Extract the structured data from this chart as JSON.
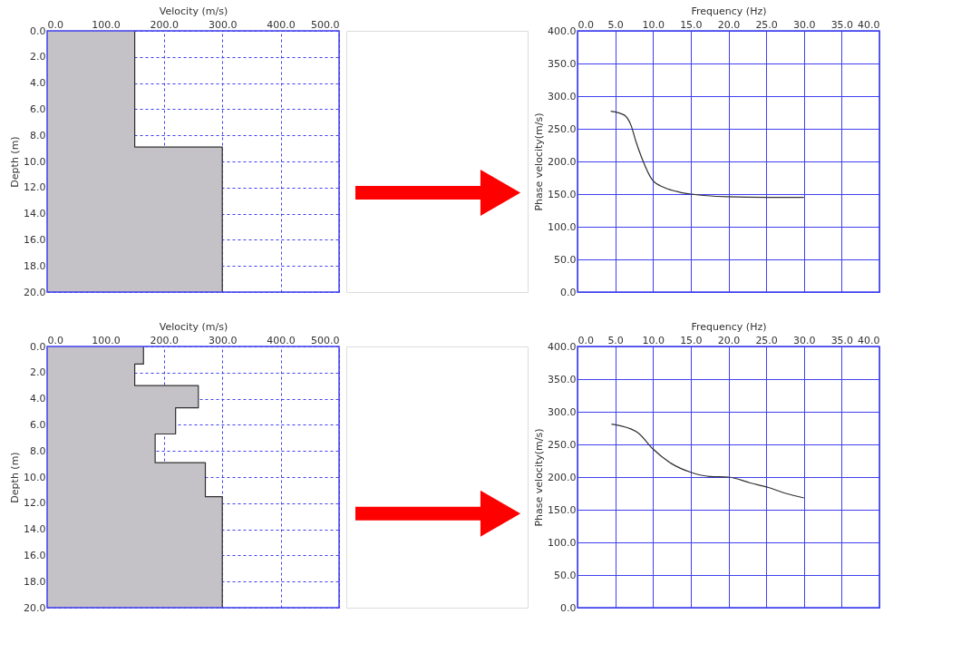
{
  "chart_data": [
    {
      "type": "area",
      "orientation": "horizontal",
      "xlabel": "Velocity (m/s)",
      "ylabel": "Depth (m)",
      "x": [
        0,
        8.9,
        8.9,
        20
      ],
      "series": [
        {
          "color": "#c4c2c6",
          "values": [
            150,
            150,
            300,
            300
          ]
        }
      ],
      "xlim": [
        0,
        500
      ],
      "xticks": [
        {
          "value": 0,
          "label": "0.0"
        },
        {
          "value": 100,
          "label": "100.0"
        },
        {
          "value": 200,
          "label": "200.0"
        },
        {
          "value": 300,
          "label": "300.0"
        },
        {
          "value": 400,
          "label": "400.0"
        },
        {
          "value": 500,
          "label": "500.0"
        }
      ],
      "ylim": [
        20,
        0
      ],
      "yticks": [
        {
          "value": 0,
          "label": "0.0"
        },
        {
          "value": 2,
          "label": "2.0"
        },
        {
          "value": 4,
          "label": "4.0"
        },
        {
          "value": 6,
          "label": "6.0"
        },
        {
          "value": 8,
          "label": "8.0"
        },
        {
          "value": 10,
          "label": "10.0"
        },
        {
          "value": 12,
          "label": "12.0"
        },
        {
          "value": 14,
          "label": "14.0"
        },
        {
          "value": 16,
          "label": "16.0"
        },
        {
          "value": 18,
          "label": "18.0"
        },
        {
          "value": 20,
          "label": "20.0"
        }
      ],
      "grid": true
    },
    {
      "type": "line",
      "xlabel": "Frequency (Hz)",
      "ylabel": "Phase velocity(m/s)",
      "series": [
        {
          "color": "#303030",
          "x": [
            4.4,
            6.2,
            7.1,
            7.7,
            8.5,
            9.9,
            11.5,
            13.5,
            15.1,
            19.8,
            25,
            30
          ],
          "values": [
            277,
            271,
            255,
            232,
            206,
            172,
            160,
            153,
            150,
            146,
            145,
            145
          ]
        }
      ],
      "xlim": [
        0,
        40
      ],
      "xticks": [
        {
          "value": 0,
          "label": "0.0"
        },
        {
          "value": 5,
          "label": "5.0"
        },
        {
          "value": 10,
          "label": "10.0"
        },
        {
          "value": 15,
          "label": "15.0"
        },
        {
          "value": 20,
          "label": "20.0"
        },
        {
          "value": 25,
          "label": "25.0"
        },
        {
          "value": 30,
          "label": "30.0"
        },
        {
          "value": 35,
          "label": "35.0"
        },
        {
          "value": 40,
          "label": "40.0"
        }
      ],
      "ylim": [
        0,
        400
      ],
      "yticks": [
        {
          "value": 0,
          "label": "0.0"
        },
        {
          "value": 50,
          "label": "50.0"
        },
        {
          "value": 100,
          "label": "100.0"
        },
        {
          "value": 150,
          "label": "150.0"
        },
        {
          "value": 200,
          "label": "200.0"
        },
        {
          "value": 250,
          "label": "250.0"
        },
        {
          "value": 300,
          "label": "300.0"
        },
        {
          "value": 350,
          "label": "350.0"
        },
        {
          "value": 400,
          "label": "400.0"
        }
      ],
      "grid": true
    },
    {
      "type": "area",
      "orientation": "horizontal",
      "xlabel": "Velocity (m/s)",
      "ylabel": "Depth (m)",
      "x": [
        0,
        1.35,
        1.35,
        3.0,
        3.0,
        4.7,
        4.7,
        6.7,
        6.7,
        8.9,
        8.9,
        11.5,
        11.5,
        20
      ],
      "series": [
        {
          "color": "#c4c2c6",
          "values": [
            165,
            165,
            150,
            150,
            259,
            259,
            220,
            220,
            185,
            185,
            271,
            271,
            300,
            300
          ]
        }
      ],
      "xlim": [
        0,
        500
      ],
      "xticks": [
        {
          "value": 0,
          "label": "0.0"
        },
        {
          "value": 100,
          "label": "100.0"
        },
        {
          "value": 200,
          "label": "200.0"
        },
        {
          "value": 300,
          "label": "300.0"
        },
        {
          "value": 400,
          "label": "400.0"
        },
        {
          "value": 500,
          "label": "500.0"
        }
      ],
      "ylim": [
        20,
        0
      ],
      "yticks": [
        {
          "value": 0,
          "label": "0.0"
        },
        {
          "value": 2,
          "label": "2.0"
        },
        {
          "value": 4,
          "label": "4.0"
        },
        {
          "value": 6,
          "label": "6.0"
        },
        {
          "value": 8,
          "label": "8.0"
        },
        {
          "value": 10,
          "label": "10.0"
        },
        {
          "value": 12,
          "label": "12.0"
        },
        {
          "value": 14,
          "label": "14.0"
        },
        {
          "value": 16,
          "label": "16.0"
        },
        {
          "value": 18,
          "label": "18.0"
        },
        {
          "value": 20,
          "label": "20.0"
        }
      ],
      "grid": true
    },
    {
      "type": "line",
      "xlabel": "Frequency (Hz)",
      "ylabel": "Phase velocity(m/s)",
      "series": [
        {
          "color": "#303030",
          "x": [
            4.5,
            5.5,
            8.1,
            10,
            12.4,
            15.1,
            17.5,
            20,
            22.9,
            25.3,
            27.6,
            30
          ],
          "values": [
            281,
            279,
            267,
            243,
            221,
            207,
            201,
            200,
            191,
            184,
            175,
            168
          ]
        }
      ],
      "xlim": [
        0,
        40
      ],
      "xticks": [
        {
          "value": 0,
          "label": "0.0"
        },
        {
          "value": 5,
          "label": "5.0"
        },
        {
          "value": 10,
          "label": "10.0"
        },
        {
          "value": 15,
          "label": "15.0"
        },
        {
          "value": 20,
          "label": "20.0"
        },
        {
          "value": 25,
          "label": "25.0"
        },
        {
          "value": 30,
          "label": "30.0"
        },
        {
          "value": 35,
          "label": "35.0"
        },
        {
          "value": 40,
          "label": "40.0"
        }
      ],
      "ylim": [
        0,
        400
      ],
      "yticks": [
        {
          "value": 0,
          "label": "0.0"
        },
        {
          "value": 50,
          "label": "50.0"
        },
        {
          "value": 100,
          "label": "100.0"
        },
        {
          "value": 150,
          "label": "150.0"
        },
        {
          "value": 200,
          "label": "200.0"
        },
        {
          "value": 250,
          "label": "250.0"
        },
        {
          "value": 300,
          "label": "300.0"
        },
        {
          "value": 350,
          "label": "350.0"
        },
        {
          "value": 400,
          "label": "400.0"
        }
      ],
      "grid": true
    }
  ]
}
